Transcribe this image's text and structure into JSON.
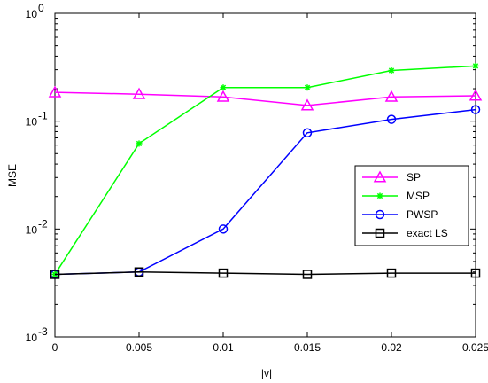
{
  "chart_data": {
    "type": "line",
    "xlabel": "|v|",
    "ylabel": "MSE",
    "xlim": [
      0,
      0.025
    ],
    "ylim": [
      0.001,
      1
    ],
    "y_scale": "log",
    "grid": false,
    "legend_position": "right-center",
    "x_ticks": [
      "0",
      "0.005",
      "0.01",
      "0.015",
      "0.02",
      "0.025"
    ],
    "y_ticks": [
      {
        "base": "10",
        "exp": "-3"
      },
      {
        "base": "10",
        "exp": "-2"
      },
      {
        "base": "10",
        "exp": "-1"
      },
      {
        "base": "10",
        "exp": "0"
      }
    ],
    "x": [
      0,
      0.005,
      0.01,
      0.015,
      0.02,
      0.025
    ],
    "series": [
      {
        "name": "SP",
        "color": "#ff00ff",
        "marker": "triangle",
        "values": [
          0.185,
          0.178,
          0.168,
          0.14,
          0.168,
          0.172
        ]
      },
      {
        "name": "MSP",
        "color": "#00ff00",
        "marker": "star",
        "values": [
          0.0038,
          0.062,
          0.205,
          0.205,
          0.295,
          0.325
        ]
      },
      {
        "name": "PWSP",
        "color": "#0000ff",
        "marker": "circle",
        "values": [
          0.0038,
          0.004,
          0.01,
          0.078,
          0.104,
          0.128
        ]
      },
      {
        "name": "exact LS",
        "color": "#000000",
        "marker": "square",
        "values": [
          0.0038,
          0.004,
          0.0039,
          0.0038,
          0.0039,
          0.0039
        ]
      }
    ]
  }
}
